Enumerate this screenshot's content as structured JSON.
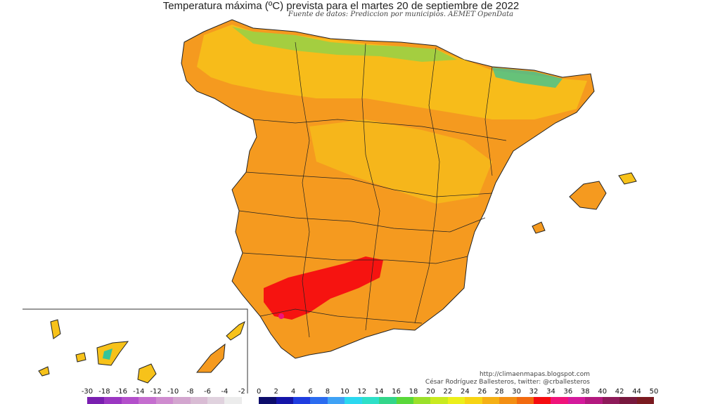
{
  "map": {
    "title": "Temperatura máxima (ºC) prevista para el martes 20 de septiembre de 2022",
    "subtitle": "Fuente de datos: Prediccion por municipios. AEMET OpenData",
    "credit_url": "http://climaenmapas.blogspot.com",
    "credit_author": "César Rodríguez Ballesteros, twitter: @crballesteros",
    "colors": {
      "orange": "#f59a1f",
      "yellow": "#f7c21a",
      "red": "#f50c10",
      "green": "#8fd24a",
      "teal": "#35c49a"
    }
  },
  "legend": {
    "labels": [
      "-30",
      "-18",
      "-16",
      "-14",
      "-12",
      "-10",
      "-8",
      "-6",
      "-4",
      "-2",
      "0",
      "2",
      "4",
      "6",
      "8",
      "10",
      "12",
      "14",
      "16",
      "18",
      "20",
      "22",
      "24",
      "26",
      "28",
      "30",
      "32",
      "34",
      "36",
      "38",
      "40",
      "42",
      "44",
      "50"
    ],
    "colors": [
      "#7a1fb0",
      "#9b37c2",
      "#b34fcb",
      "#c56ecf",
      "#cf8ccf",
      "#d3a6cf",
      "#d9bcd4",
      "#e0d2de",
      "#ececec",
      "#ffffff",
      "#0d0d6b",
      "#1515a8",
      "#1f3de0",
      "#2b6cf0",
      "#3fa2f5",
      "#2bd8f0",
      "#2ee0c8",
      "#33d68a",
      "#5ad83a",
      "#9be02a",
      "#c9ea1f",
      "#ecef1a",
      "#f7d414",
      "#f5b015",
      "#f38f14",
      "#f26a10",
      "#f50c10",
      "#f0147a",
      "#d41a9c",
      "#b3197f",
      "#8e1a5a",
      "#77183d",
      "#7a1a20"
    ]
  }
}
